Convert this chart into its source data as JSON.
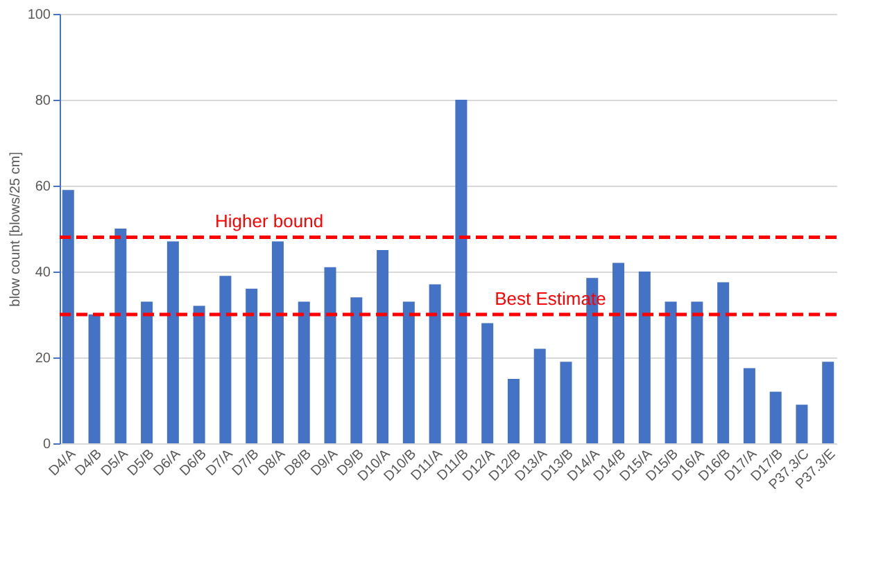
{
  "chart_data": {
    "type": "bar",
    "ylabel": "blow count [blows/25 cm]",
    "categories": [
      "D4/A",
      "D4/B",
      "D5/A",
      "D5/B",
      "D6/A",
      "D6/B",
      "D7/A",
      "D7/B",
      "D8/A",
      "D8/B",
      "D9/A",
      "D9/B",
      "D10/A",
      "D10/B",
      "D11/A",
      "D11/B",
      "D12/A",
      "D12/B",
      "D13/A",
      "D13/B",
      "D14/A",
      "D14/B",
      "D15/A",
      "D15/B",
      "D16/A",
      "D16/B",
      "D17/A",
      "D17/B",
      "P37.3/C",
      "P37.3/E"
    ],
    "values": [
      59,
      30,
      50,
      33,
      47,
      32,
      39,
      36,
      47,
      33,
      41,
      34,
      45,
      33,
      37,
      80,
      28,
      15,
      22,
      19,
      38.5,
      42,
      40,
      33,
      33,
      37.5,
      17.5,
      12,
      9,
      19
    ],
    "color": "#4472c4",
    "ylim": [
      0,
      100
    ],
    "yticks": [
      0,
      20,
      40,
      60,
      80,
      100
    ],
    "grid": "y",
    "ref_lines": [
      {
        "axis": "y",
        "value": 48,
        "label": "Higher bound",
        "color": "#ff0000",
        "line_style": "dashed"
      },
      {
        "axis": "y",
        "value": 30,
        "label": "Best Estimate",
        "color": "#ff0000",
        "line_style": "dashed"
      }
    ]
  }
}
